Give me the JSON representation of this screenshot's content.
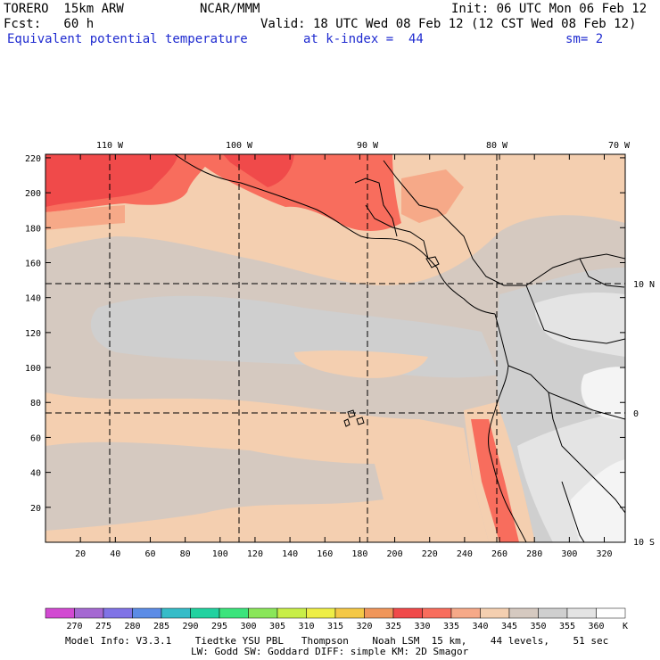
{
  "header": {
    "model": "TORERO  15km ARW",
    "org": "NCAR/MMM",
    "init": "Init: 06 UTC Mon 06 Feb 12",
    "fcst": "Fcst:   60 h",
    "valid": "Valid: 18 UTC Wed 08 Feb 12 (12 CST Wed 08 Feb 12)",
    "field": "Equivalent potential temperature",
    "level": "at k-index =  44",
    "smooth": "sm= 2"
  },
  "map": {
    "top_lon_labels": [
      "110 W",
      "100 W",
      "90 W",
      "80 W",
      "70 W"
    ],
    "right_lat_labels": [
      "10 N",
      "0",
      "10 S"
    ],
    "x_grid_labels": [
      "20",
      "40",
      "60",
      "80",
      "100",
      "120",
      "140",
      "160",
      "180",
      "200",
      "220",
      "240",
      "260",
      "280",
      "300",
      "320"
    ],
    "y_grid_labels": [
      "20",
      "40",
      "60",
      "80",
      "100",
      "120",
      "140",
      "160",
      "180",
      "200",
      "220"
    ],
    "colors": {
      "c330": "#f04a4a",
      "c335": "#f86d5d",
      "c340": "#f6a988",
      "c345": "#f4cfb0",
      "c350": "#d5c9c0",
      "c355": "#cfcfcf",
      "c360": "#e4e4e4",
      "c365": "#f4f4f4"
    }
  },
  "colorbar": {
    "levels": [
      "270",
      "275",
      "280",
      "285",
      "290",
      "295",
      "300",
      "305",
      "310",
      "315",
      "320",
      "325",
      "330",
      "335",
      "340",
      "345",
      "350",
      "355",
      "360"
    ],
    "unit": "K",
    "swatches": [
      "#d24ad2",
      "#a569d2",
      "#8073e6",
      "#5c8ce6",
      "#36bcc8",
      "#22d2a0",
      "#3ce47c",
      "#8ae65a",
      "#c8ee48",
      "#eeee46",
      "#f4c846",
      "#f0965a",
      "#f04a4a",
      "#f86d5d",
      "#f6a988",
      "#f4cfb0",
      "#d5c9c0",
      "#cfcfcf",
      "#e4e4e4",
      "#ffffff"
    ]
  },
  "footer": {
    "line1": "Model Info: V3.3.1    Tiedtke YSU PBL   Thompson    Noah LSM  15 km,    44 levels,    51 sec",
    "line2": "LW: Godd SW: Goddard DIFF: simple KM: 2D Smagor"
  }
}
